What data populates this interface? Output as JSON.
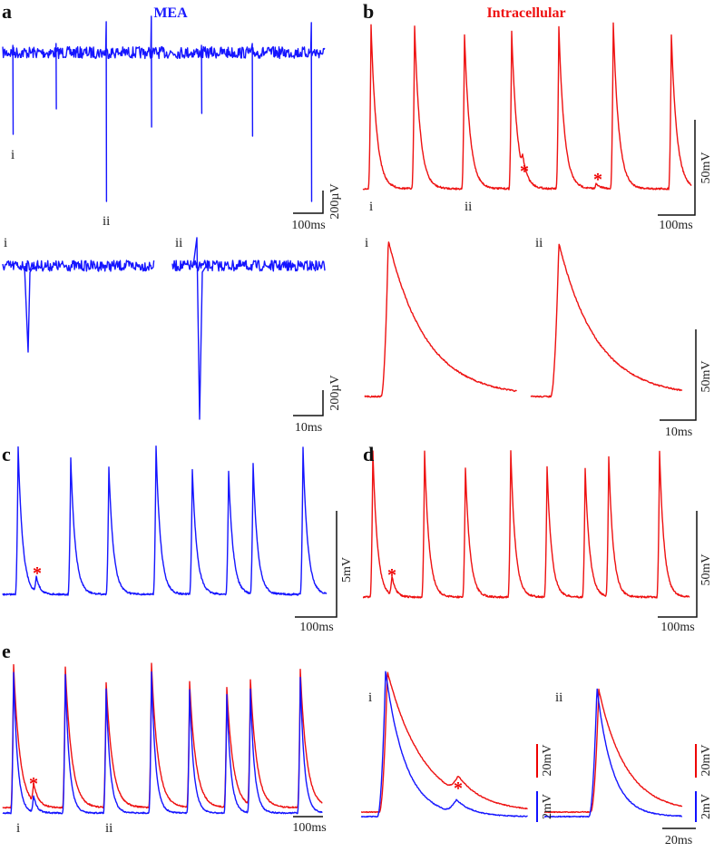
{
  "panels": {
    "a": {
      "label": "a",
      "title": "MEA",
      "trace_labels": [
        "i",
        "ii"
      ],
      "scale": {
        "y": "200µV",
        "x": "100ms"
      },
      "insets": [
        {
          "label": "i"
        },
        {
          "label": "ii"
        }
      ],
      "inset_scale": {
        "y": "200µV",
        "x": "10ms"
      }
    },
    "b": {
      "label": "b",
      "title": "Intracellular",
      "trace_labels": [
        "i",
        "ii"
      ],
      "markers": [
        "*",
        "*"
      ],
      "scale": {
        "y": "50mV",
        "x": "100ms"
      },
      "insets": [
        {
          "label": "i"
        },
        {
          "label": "ii"
        }
      ],
      "inset_scale": {
        "y": "50mV",
        "x": "10ms"
      }
    },
    "c": {
      "label": "c",
      "markers": [
        "*"
      ],
      "scale": {
        "y": "5mV",
        "x": "100ms"
      }
    },
    "d": {
      "label": "d",
      "markers": [
        "*"
      ],
      "scale": {
        "y": "50mV",
        "x": "100ms"
      }
    },
    "e": {
      "label": "e",
      "markers": [
        "*"
      ],
      "trace_labels": [
        "i",
        "ii"
      ],
      "scale": {
        "x": "100ms"
      },
      "insets": [
        {
          "label": "i",
          "marker": "*",
          "scale": {
            "y_red": "20mV",
            "y_blue": "2mV"
          }
        },
        {
          "label": "ii",
          "scale": {
            "y_red": "20mV",
            "y_blue": "2mV",
            "x": "20ms"
          }
        }
      ]
    }
  }
}
